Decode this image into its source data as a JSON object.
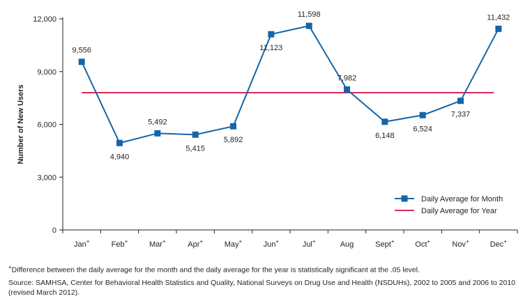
{
  "chart_data": {
    "type": "line",
    "ylabel": "Number of New Users",
    "ylim": [
      0,
      12000
    ],
    "yticks": [
      0,
      3000,
      6000,
      9000,
      12000
    ],
    "ytick_labels": [
      "0",
      "3,000",
      "6,000",
      "9,000",
      "12,000"
    ],
    "categories": [
      "Jan",
      "Feb",
      "Mar",
      "Apr",
      "May",
      "Jun",
      "Jul",
      "Aug",
      "Sept",
      "Oct",
      "Nov",
      "Dec"
    ],
    "significant": [
      true,
      true,
      true,
      true,
      true,
      true,
      true,
      false,
      true,
      true,
      true,
      true
    ],
    "series": [
      {
        "name": "Daily Average for Month",
        "color": "#1565a8",
        "marker": "square",
        "values": [
          9556,
          4940,
          5492,
          5415,
          5892,
          11123,
          11598,
          7982,
          6148,
          6524,
          7337,
          11432
        ],
        "labels": [
          "9,556",
          "4,940",
          "5,492",
          "5,415",
          "5,892",
          "11,123",
          "11,598",
          "7,982",
          "6,148",
          "6,524",
          "7,337",
          "11,432"
        ]
      },
      {
        "name": "Daily Average for Year",
        "color": "#d6295a",
        "value": 7800
      }
    ],
    "legend_position": "bottom-right",
    "grid": false
  },
  "separator_color": "#d6295a",
  "footnote": {
    "marker": "+",
    "text": "Difference between the daily average for the month and the daily average for the year is statistically significant at the .05 level."
  },
  "source": "Source: SAMHSA, Center for Behavioral Health Statistics and Quality, National Surveys on Drug Use and Health (NSDUHs), 2002 to 2005 and 2006 to 2010 (revised March 2012)."
}
